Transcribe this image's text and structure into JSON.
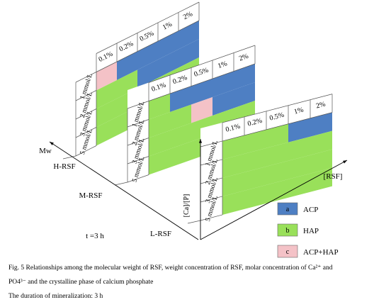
{
  "colors": {
    "acp": "#4e7fc3",
    "hap": "#99e05a",
    "mixed": "#f4c2c7"
  },
  "concentrations": [
    "0.1%",
    "0.2%",
    "0.5%",
    "1%",
    "2%"
  ],
  "molarities": [
    "1 mmol/L",
    "2 mmol/L",
    "3 mmol/L",
    "5 mmol/L"
  ],
  "panels": [
    {
      "name": "H-RSF",
      "region_labels": {
        "acp": "a",
        "hap": "b",
        "mixed": "c"
      }
    },
    {
      "name": "M-RSF",
      "region_labels": {
        "acp": "a",
        "hap": "b",
        "mixed": "c"
      }
    },
    {
      "name": "L-RSF",
      "region_labels": {
        "acp": "a",
        "hap": "b"
      }
    }
  ],
  "axes": {
    "mw": "Mw",
    "rsf": "[RSF]",
    "ca_p": "[Ca]/[P]"
  },
  "time_label": "t =3 h",
  "legend": [
    {
      "key": "a",
      "text": "ACP",
      "color_role": "acp"
    },
    {
      "key": "b",
      "text": "HAP",
      "color_role": "hap"
    },
    {
      "key": "c",
      "text": "ACP+HAP",
      "color_role": "mixed"
    }
  ],
  "caption": {
    "line1": "Fig. 5   Relationships among the molecular weight of RSF, weight concentration of RSF, molar concentration of Ca²⁺ and",
    "line2": "PO4³⁻ and the crystalline phase of calcium phosphate",
    "line3": "The duration of mineralization: 3 h"
  }
}
